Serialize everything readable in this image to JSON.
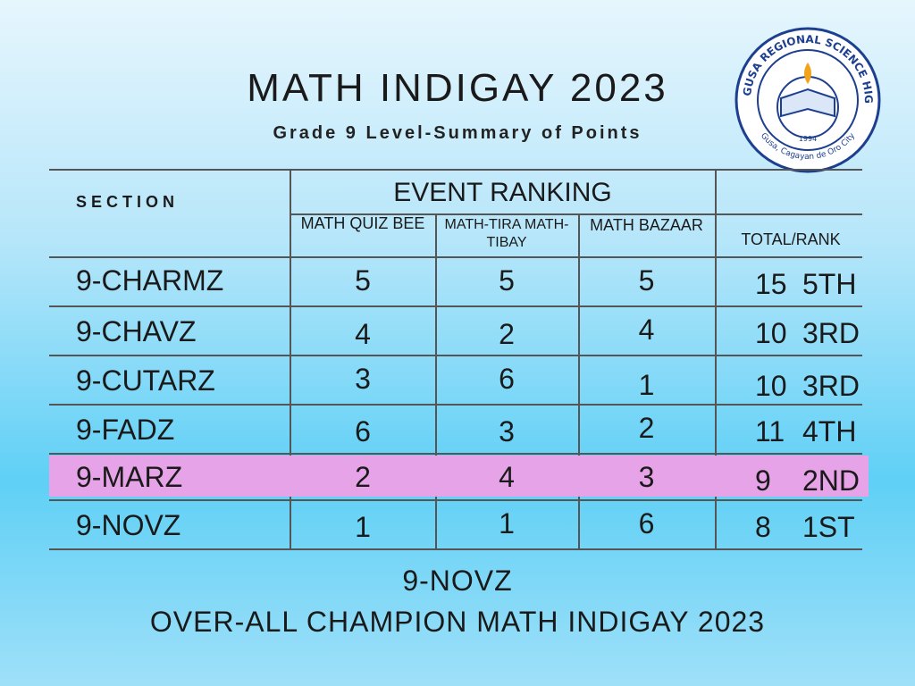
{
  "header": {
    "title": "MATH INDIGAY 2023",
    "subtitle": "Grade 9 Level-Summary of Points"
  },
  "logo": {
    "name": "GUSA REGIONAL SCIENCE HIGH SCHOOL - X",
    "year": "1994",
    "place": "Gusa, Cagayan de Oro City"
  },
  "table": {
    "section_header": "SECTION",
    "group_header": "EVENT RANKING",
    "columns": [
      "MATH QUIZ BEE",
      "MATH-TIRA MATH-TIBAY",
      "MATH BAZAAR",
      "TOTAL/RANK"
    ],
    "rows": [
      [
        "9-CHARMZ",
        5,
        5,
        5,
        15,
        "5TH"
      ],
      [
        "9-CHAVZ",
        4,
        2,
        4,
        10,
        "3RD"
      ],
      [
        "9-CUTARZ",
        3,
        6,
        1,
        10,
        "3RD"
      ],
      [
        "9-FADZ",
        6,
        3,
        2,
        11,
        "4TH"
      ],
      [
        "9-MARZ",
        2,
        4,
        3,
        9,
        "2ND"
      ],
      [
        "9-NOVZ",
        1,
        1,
        6,
        8,
        "1ST"
      ]
    ]
  },
  "footer": {
    "champion": "9-NOVZ",
    "caption": "OVER-ALL CHAMPION MATH INDIGAY 2023"
  }
}
